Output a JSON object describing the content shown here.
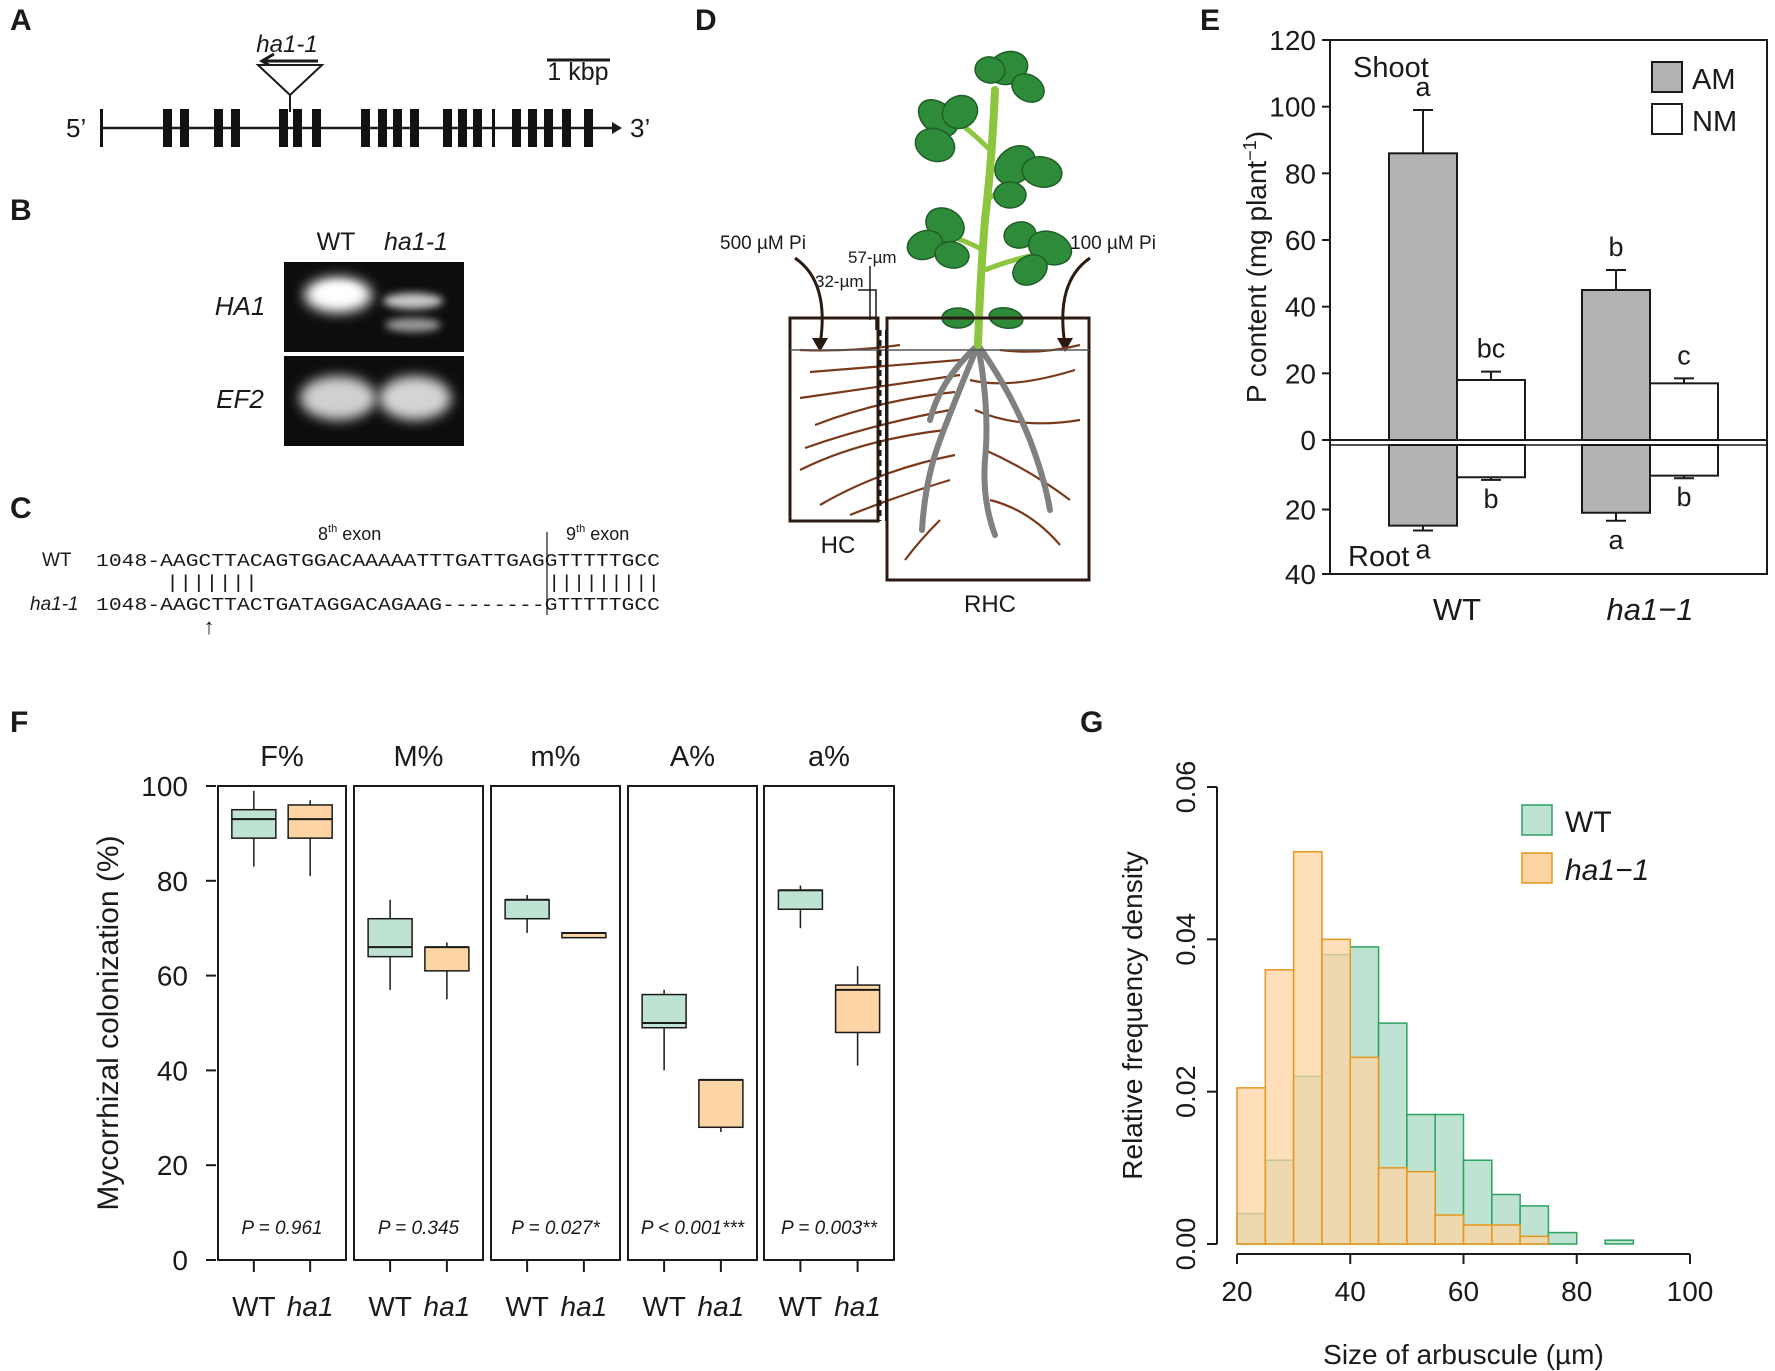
{
  "panels": {
    "A": {
      "letter": "A",
      "allele_label": "ha1-1",
      "scale_label": "1 kbp",
      "five_prime": "5’",
      "three_prime": "3’"
    },
    "B": {
      "letter": "B",
      "col_wt": "WT",
      "col_mut": "ha1-1",
      "row_ha1": "HA1",
      "row_ef2": "EF2"
    },
    "C": {
      "letter": "C",
      "exon8_label": "8",
      "exon9_label": "9",
      "exon_suffix": "th",
      "exon_word": "exon",
      "wt_label": "WT",
      "mut_label": "ha1-1",
      "wt_seq": "1048-AAGCTTACAGTGGACAAAAATTTGATTGAGGTTTTTGCC",
      "match1": "|||||||",
      "match2": "|||||||||",
      "mut_seq": "1048-AAGCTTACTGATAGGACAGAAG--------GTTTTTGCC",
      "arrow": "↑"
    },
    "D": {
      "letter": "D",
      "pi_left": "500 µM Pi",
      "pi_right": "100 µM Pi",
      "mesh_57": "57-µm",
      "mesh_32": "32-µm",
      "hc": "HC",
      "rhc": "RHC",
      "colors": {
        "leaf": "#2e8b3a",
        "stem": "#8cc63f",
        "root": "#7a3a1a",
        "taproot": "#808080"
      }
    },
    "E": {
      "letter": "E"
    },
    "F": {
      "letter": "F"
    },
    "G": {
      "letter": "G"
    }
  },
  "chart_data": [
    {
      "id": "E",
      "type": "bar",
      "title": "",
      "xlabel": "",
      "ylabel": "P content (mg plant⁻¹)",
      "ylabel_main": "P content (mg plant",
      "ylabel_sup": "−1",
      "ylabel_close": ")",
      "categories": [
        "WT",
        "ha1−1"
      ],
      "top_label": "Shoot",
      "bottom_label": "Root",
      "shoot_ylim": [
        0,
        120
      ],
      "shoot_ticks": [
        0,
        20,
        40,
        60,
        80,
        100,
        120
      ],
      "root_ylim": [
        0,
        40
      ],
      "root_ticks": [
        20,
        40
      ],
      "legend": [
        {
          "name": "AM",
          "color": "#b3b3b3"
        },
        {
          "name": "NM",
          "color": "#ffffff"
        }
      ],
      "series": [
        {
          "name": "AM",
          "color": "#b3b3b3",
          "shoot": [
            86,
            45
          ],
          "shoot_err": [
            13,
            6
          ],
          "shoot_letters": [
            "a",
            "b"
          ],
          "root": [
            25,
            21
          ],
          "root_err": [
            1.5,
            2.5
          ],
          "root_letters": [
            "a",
            "a"
          ]
        },
        {
          "name": "NM",
          "color": "#ffffff",
          "shoot": [
            18,
            17
          ],
          "shoot_err": [
            2.5,
            1.5
          ],
          "shoot_letters": [
            "bc",
            "c"
          ],
          "root": [
            10,
            9.5
          ],
          "root_err": [
            0.8,
            0.8
          ],
          "root_letters": [
            "b",
            "b"
          ]
        }
      ]
    },
    {
      "id": "F",
      "type": "box",
      "ylabel": "Mycorrhizal colonization (%)",
      "ylim": [
        0,
        100
      ],
      "yticks": [
        0,
        20,
        40,
        60,
        80,
        100
      ],
      "groups": [
        "WT",
        "ha1"
      ],
      "colors": {
        "WT": "#bfe3d2",
        "ha1": "#fdd4a3"
      },
      "facets": [
        {
          "name": "F%",
          "p": "P = 0.961",
          "WT": {
            "min": 83,
            "q1": 89,
            "median": 93,
            "q3": 95,
            "max": 99
          },
          "ha1": {
            "min": 81,
            "q1": 89,
            "median": 93,
            "q3": 96,
            "max": 97
          }
        },
        {
          "name": "M%",
          "p": "P = 0.345",
          "WT": {
            "min": 57,
            "q1": 64,
            "median": 66,
            "q3": 72,
            "max": 76
          },
          "ha1": {
            "min": 55,
            "q1": 61,
            "median": 66,
            "q3": 66,
            "max": 67
          }
        },
        {
          "name": "m%",
          "p": "P = 0.027*",
          "WT": {
            "min": 69,
            "q1": 72,
            "median": 76,
            "q3": 76,
            "max": 77
          },
          "ha1": {
            "min": 68,
            "q1": 68,
            "median": 69,
            "q3": 69,
            "max": 69
          }
        },
        {
          "name": "A%",
          "p": "P < 0.001***",
          "WT": {
            "min": 40,
            "q1": 49,
            "median": 50,
            "q3": 56,
            "max": 57
          },
          "ha1": {
            "min": 27,
            "q1": 28,
            "median": 38,
            "q3": 38,
            "max": 38
          }
        },
        {
          "name": "a%",
          "p": "P = 0.003**",
          "WT": {
            "min": 70,
            "q1": 74,
            "median": 78,
            "q3": 78,
            "max": 79
          },
          "ha1": {
            "min": 41,
            "q1": 48,
            "median": 57,
            "q3": 58,
            "max": 62
          }
        }
      ]
    },
    {
      "id": "G",
      "type": "histogram",
      "xlabel": "Size of arbuscule (µm)",
      "ylabel": "Relative frequency density",
      "xlim": [
        20,
        100
      ],
      "xticks": [
        20,
        40,
        60,
        80,
        100
      ],
      "ylim": [
        0,
        0.06
      ],
      "yticks": [
        "0.00",
        "0.02",
        "0.04",
        "0.06"
      ],
      "bin_edges": [
        20,
        25,
        30,
        35,
        40,
        45,
        50,
        55,
        60,
        65,
        70,
        75,
        80,
        85,
        90
      ],
      "series": [
        {
          "name": "WT",
          "color": "#bfe3d2",
          "stroke": "#2ca25f",
          "values": [
            0.004,
            0.011,
            0.022,
            0.038,
            0.039,
            0.029,
            0.017,
            0.017,
            0.011,
            0.0065,
            0.005,
            0.0015,
            0,
            0.0005
          ]
        },
        {
          "name": "ha1−1",
          "color": "#fdd4a3",
          "stroke": "#e8961e",
          "values": [
            0.0205,
            0.036,
            0.0515,
            0.04,
            0.0245,
            0.01,
            0.0095,
            0.0038,
            0.0025,
            0.0025,
            0.001,
            0,
            0,
            0
          ]
        }
      ]
    }
  ]
}
